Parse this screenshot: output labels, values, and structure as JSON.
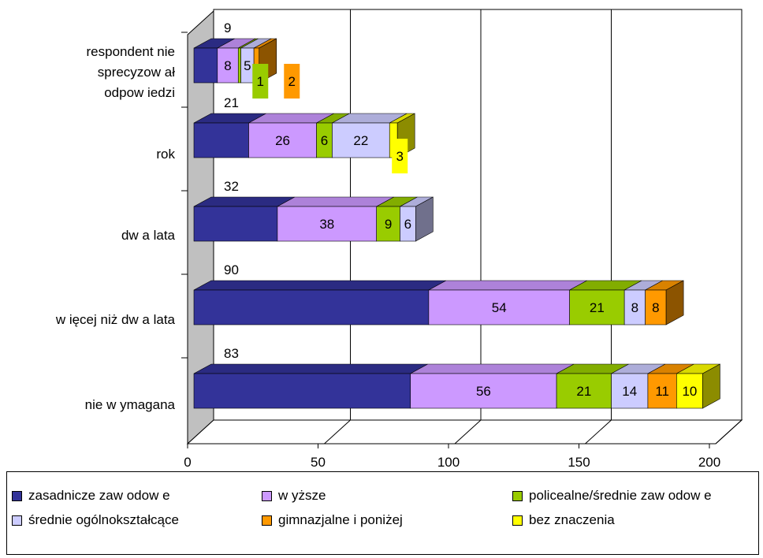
{
  "chart_data": {
    "type": "bar",
    "orientation": "horizontal",
    "stacked": true,
    "three_d": true,
    "categories": [
      "respondent nie sprecyzow ał odpow iedzi",
      "rok",
      "dw a lata",
      "w ięcej niż dw a lata",
      "nie w ymagana"
    ],
    "category_lines": [
      [
        "respondent nie",
        "sprecyzow ał",
        "odpow iedzi"
      ],
      [
        "rok"
      ],
      [
        "dw a lata"
      ],
      [
        "w ięcej niż dw a lata"
      ],
      [
        "nie w ymagana"
      ]
    ],
    "series": [
      {
        "name": "zasadnicze zaw odow e",
        "color": "#333399",
        "values": [
          9,
          21,
          32,
          90,
          83
        ],
        "labels": [
          "9",
          "21",
          "32",
          "90",
          "83"
        ]
      },
      {
        "name": "w yższe",
        "color": "#cc99ff",
        "values": [
          8,
          26,
          38,
          54,
          56
        ],
        "labels": [
          "8",
          "26",
          "38",
          "54",
          "56"
        ]
      },
      {
        "name": "policealne/średnie zaw odow e",
        "color": "#99cc00",
        "values": [
          1,
          6,
          9,
          21,
          21
        ],
        "labels": [
          "1",
          "6",
          "9",
          "21",
          "21"
        ]
      },
      {
        "name": "średnie ogólnokształcące",
        "color": "#ccccff",
        "values": [
          5,
          22,
          6,
          8,
          14
        ],
        "labels": [
          "5",
          "22",
          "6",
          "8",
          "14"
        ]
      },
      {
        "name": "gimnazjalne i poniżej",
        "color": "#ff9900",
        "values": [
          2,
          0,
          0,
          8,
          11
        ],
        "labels": [
          "2",
          "",
          "",
          "8",
          "11"
        ]
      },
      {
        "name": "bez znaczenia",
        "color": "#ffff00",
        "values": [
          0,
          3,
          0,
          0,
          10
        ],
        "labels": [
          "",
          "3",
          "",
          "",
          "10"
        ]
      }
    ],
    "x_ticks": [
      "0",
      "50",
      "100",
      "150",
      "200"
    ],
    "xlim": [
      0,
      200
    ],
    "grid": true,
    "legend_position": "bottom"
  }
}
